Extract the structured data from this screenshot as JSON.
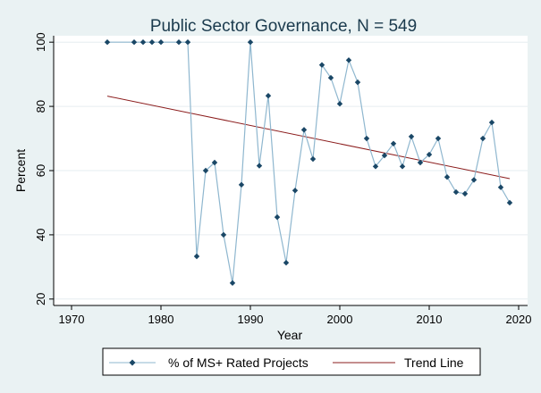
{
  "chart_data": {
    "type": "line",
    "title": "Public Sector Governance, N = 549",
    "xlabel": "Year",
    "ylabel": "Percent",
    "xlim": [
      1968,
      2021
    ],
    "ylim": [
      18,
      102
    ],
    "xticks": [
      1970,
      1980,
      1990,
      2000,
      2010,
      2020
    ],
    "yticks": [
      20,
      40,
      60,
      80,
      100
    ],
    "grid": true,
    "legend_position": "bottom",
    "series": [
      {
        "name": "% of MS+ Rated Projects",
        "marker": "diamond",
        "color": "#1a4766",
        "line_color": "#8fb7cf",
        "x": [
          1974,
          1977,
          1978,
          1979,
          1980,
          1982,
          1983,
          1984,
          1985,
          1986,
          1987,
          1988,
          1989,
          1990,
          1991,
          1992,
          1993,
          1994,
          1995,
          1996,
          1997,
          1998,
          1999,
          2000,
          2001,
          2002,
          2003,
          2004,
          2005,
          2006,
          2007,
          2008,
          2009,
          2010,
          2011,
          2012,
          2013,
          2014,
          2015,
          2016,
          2017,
          2018,
          2019
        ],
        "values": [
          100,
          100,
          100,
          100,
          100,
          100,
          100,
          33.3,
          60,
          62.5,
          40,
          25,
          55.6,
          100,
          61.5,
          83.3,
          45.5,
          31.3,
          53.8,
          72.7,
          63.6,
          92.9,
          88.9,
          80.8,
          94.4,
          87.5,
          70,
          61.3,
          64.7,
          68.4,
          61.3,
          70.6,
          62.5,
          65,
          70,
          58,
          53.3,
          52.8,
          57.1,
          70,
          75,
          54.8,
          50
        ]
      },
      {
        "name": "Trend Line",
        "type": "line",
        "color": "#8b1c1c",
        "x": [
          1974,
          2019
        ],
        "values": [
          83.2,
          57.5
        ]
      }
    ]
  },
  "colors": {
    "background": "#eaf2f3",
    "plot_background": "#ffffff",
    "grid": "#e6eef0",
    "axis": "#000000"
  }
}
